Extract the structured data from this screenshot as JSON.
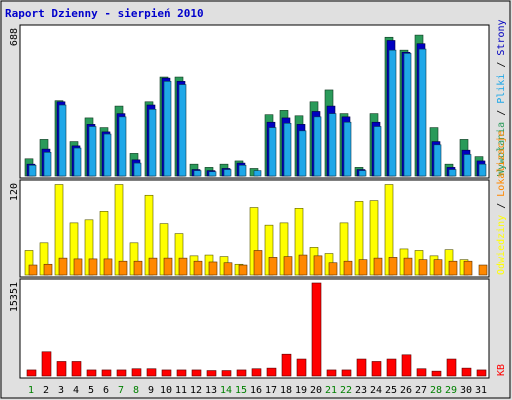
{
  "title": "Raport Dzienny -  sierpień 2010",
  "colors": {
    "frame_bg": "#e0e0e0",
    "plot_bg": "#ffffff",
    "visits": "#0f8060",
    "pages": "#0000c0",
    "files": "#1ea7e8",
    "hits": "#2a9a5a",
    "sites": "#ff8800",
    "visitors": "#ffff00",
    "kbytes": "#ff0000",
    "title": "#0000cc",
    "weekend": "#008000",
    "weekday": "#000000"
  },
  "chart_data": [
    {
      "type": "bar",
      "name": "top",
      "ymax_label": "688",
      "ylim": [
        0,
        688
      ],
      "legend": [
        {
          "label": "Wywołania",
          "color": "#2a9a5a"
        },
        {
          "label": "Pliki",
          "color": "#1ea7e8"
        },
        {
          "label": "Strony",
          "color": "#0000c0"
        }
      ],
      "series": [
        {
          "name": "Wywołania",
          "values": [
            80,
            170,
            350,
            160,
            270,
            225,
            325,
            105,
            345,
            460,
            460,
            55,
            40,
            55,
            70,
            35,
            285,
            305,
            280,
            345,
            400,
            290,
            40,
            290,
            645,
            585,
            655,
            225,
            55,
            170,
            90
          ]
        },
        {
          "name": "Strony",
          "values": [
            55,
            125,
            345,
            140,
            240,
            205,
            290,
            75,
            330,
            455,
            440,
            30,
            25,
            35,
            60,
            0,
            250,
            270,
            240,
            300,
            325,
            275,
            30,
            250,
            630,
            575,
            615,
            160,
            40,
            120,
            70
          ]
        },
        {
          "name": "Pliki",
          "values": [
            50,
            110,
            330,
            130,
            230,
            195,
            275,
            60,
            310,
            440,
            425,
            25,
            20,
            30,
            50,
            25,
            225,
            245,
            210,
            275,
            290,
            250,
            25,
            230,
            585,
            570,
            590,
            145,
            30,
            100,
            55
          ]
        }
      ]
    },
    {
      "type": "bar",
      "name": "middle",
      "ymax_label": "120",
      "ylim": [
        0,
        120
      ],
      "legend": [
        {
          "label": "Odwiedziny",
          "color": "#ffff00"
        },
        {
          "label": "Lokalizacje",
          "color": "#ff8800"
        }
      ],
      "series": [
        {
          "name": "Odwiedziny",
          "values": [
            32,
            42,
            118,
            68,
            72,
            83,
            118,
            42,
            104,
            67,
            54,
            25,
            26,
            24,
            14,
            88,
            65,
            68,
            87,
            36,
            28,
            68,
            96,
            97,
            118,
            34,
            32,
            25,
            33,
            20,
            0
          ]
        },
        {
          "name": "Lokalizacje",
          "values": [
            13,
            14,
            22,
            21,
            21,
            21,
            18,
            18,
            22,
            22,
            22,
            18,
            17,
            16,
            13,
            32,
            23,
            24,
            26,
            25,
            16,
            18,
            20,
            22,
            23,
            22,
            20,
            20,
            18,
            18,
            13
          ]
        }
      ]
    },
    {
      "type": "bar",
      "name": "bottom",
      "ymax_label": "15351",
      "ylim": [
        0,
        15351
      ],
      "legend": [
        {
          "label": "KB",
          "color": "#ff0000"
        }
      ],
      "series": [
        {
          "name": "KB",
          "values": [
            1000,
            4000,
            2400,
            2400,
            1000,
            1000,
            1000,
            1200,
            1200,
            1000,
            1000,
            1000,
            900,
            900,
            1000,
            1200,
            1300,
            3600,
            2800,
            15351,
            1000,
            1000,
            2800,
            2400,
            2800,
            3500,
            1200,
            800,
            2800,
            1300,
            1000
          ]
        }
      ]
    }
  ],
  "days": [
    "1",
    "2",
    "3",
    "4",
    "5",
    "6",
    "7",
    "8",
    "9",
    "10",
    "11",
    "12",
    "13",
    "14",
    "15",
    "16",
    "17",
    "18",
    "19",
    "20",
    "21",
    "22",
    "23",
    "24",
    "25",
    "26",
    "27",
    "28",
    "29",
    "30",
    "31"
  ],
  "weekend_days": [
    1,
    7,
    8,
    14,
    15,
    21,
    22,
    28,
    29
  ]
}
